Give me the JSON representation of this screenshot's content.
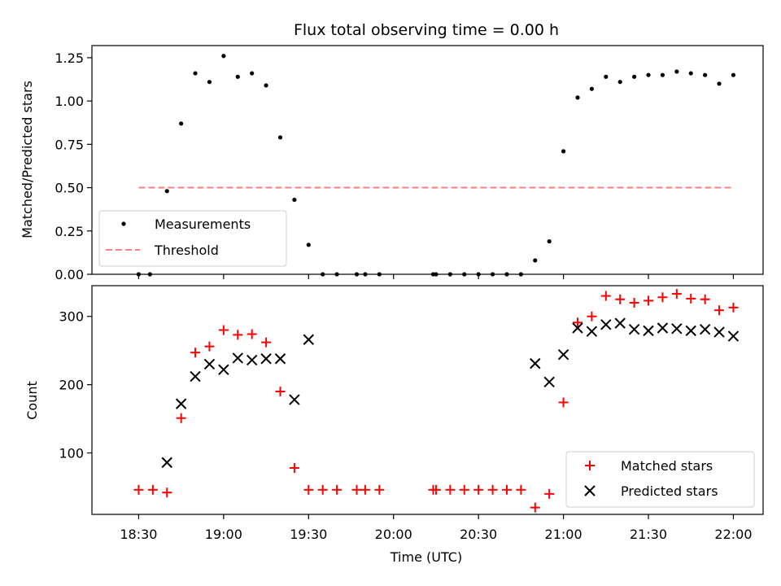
{
  "chart_data": {
    "title": "Flux total observing time = 0.00 h",
    "xlabel": "Time (UTC)",
    "x_ticks": [
      "18:30",
      "19:00",
      "19:30",
      "20:00",
      "20:30",
      "21:00",
      "21:30",
      "22:00"
    ],
    "x_tick_hours": [
      18.5,
      19.0,
      19.5,
      20.0,
      20.5,
      21.0,
      21.5,
      22.0
    ],
    "xlim_hours": [
      18.225,
      22.175
    ],
    "panels": [
      {
        "type": "scatter",
        "ylabel": "Matched/Predicted stars",
        "ylim": [
          0,
          1.32
        ],
        "y_ticks": [
          0.0,
          0.25,
          0.5,
          0.75,
          1.0,
          1.25
        ],
        "y_tick_labels": [
          "0.00",
          "0.25",
          "0.50",
          "0.75",
          "1.00",
          "1.25"
        ],
        "legend_position": "lower-left",
        "series": [
          {
            "name": "Measurements",
            "marker": "dot",
            "color": "#000000",
            "x_times": [
              "18:30",
              "18:34",
              "18:40",
              "18:45",
              "18:50",
              "18:55",
              "19:00",
              "19:05",
              "19:10",
              "19:15",
              "19:20",
              "19:25",
              "19:30",
              "19:35",
              "19:40",
              "19:47",
              "19:50",
              "19:55",
              "20:14",
              "20:15",
              "20:20",
              "20:25",
              "20:30",
              "20:35",
              "20:40",
              "20:45",
              "20:50",
              "20:55",
              "21:00",
              "21:05",
              "21:10",
              "21:15",
              "21:20",
              "21:25",
              "21:30",
              "21:35",
              "21:40",
              "21:45",
              "21:50",
              "21:55",
              "22:00"
            ],
            "y": [
              0.0,
              0.0,
              0.48,
              0.87,
              1.16,
              1.11,
              1.26,
              1.14,
              1.16,
              1.09,
              0.79,
              0.43,
              0.17,
              0.0,
              0.0,
              0.0,
              0.0,
              0.0,
              0.0,
              0.0,
              0.0,
              0.0,
              0.0,
              0.0,
              0.0,
              0.0,
              0.08,
              0.19,
              0.71,
              1.02,
              1.07,
              1.14,
              1.11,
              1.14,
              1.15,
              1.15,
              1.17,
              1.16,
              1.15,
              1.1,
              1.15
            ]
          },
          {
            "name": "Threshold",
            "marker": "dashed-line",
            "color": "#ff7f7f",
            "x_times": [
              "18:30",
              "22:00"
            ],
            "y": [
              0.5,
              0.5
            ]
          }
        ]
      },
      {
        "type": "scatter",
        "ylabel": "Count",
        "ylim": [
          10,
          345
        ],
        "y_ticks": [
          100,
          200,
          300
        ],
        "y_tick_labels": [
          "100",
          "200",
          "300"
        ],
        "legend_position": "lower-right",
        "series": [
          {
            "name": "Matched stars",
            "marker": "plus",
            "color": "#ff0000",
            "x_times": [
              "18:30",
              "18:35",
              "18:40",
              "18:45",
              "18:50",
              "18:55",
              "19:00",
              "19:05",
              "19:10",
              "19:15",
              "19:20",
              "19:25",
              "19:30",
              "19:35",
              "19:40",
              "19:47",
              "19:50",
              "19:55",
              "20:14",
              "20:15",
              "20:20",
              "20:25",
              "20:30",
              "20:35",
              "20:40",
              "20:45",
              "20:50",
              "20:55",
              "21:00",
              "21:05",
              "21:10",
              "21:15",
              "21:20",
              "21:25",
              "21:30",
              "21:35",
              "21:40",
              "21:45",
              "21:50",
              "21:55",
              "22:00"
            ],
            "y": [
              46,
              46,
              42,
              151,
              247,
              256,
              280,
              273,
              274,
              262,
              190,
              78,
              46,
              46,
              46,
              46,
              46,
              46,
              46,
              46,
              46,
              46,
              46,
              46,
              46,
              46,
              20,
              40,
              174,
              291,
              300,
              330,
              325,
              320,
              323,
              328,
              333,
              326,
              325,
              309,
              313
            ]
          },
          {
            "name": "Predicted stars",
            "marker": "x",
            "color": "#000000",
            "x_times": [
              "18:40",
              "18:45",
              "18:50",
              "18:55",
              "19:00",
              "19:05",
              "19:10",
              "19:15",
              "19:20",
              "19:25",
              "19:30",
              "20:50",
              "20:55",
              "21:00",
              "21:05",
              "21:10",
              "21:15",
              "21:20",
              "21:25",
              "21:30",
              "21:35",
              "21:40",
              "21:45",
              "21:50",
              "21:55",
              "22:00"
            ],
            "y": [
              86,
              172,
              212,
              230,
              222,
              239,
              236,
              238,
              238,
              178,
              266,
              231,
              204,
              244,
              283,
              278,
              288,
              290,
              281,
              279,
              283,
              282,
              279,
              281,
              277,
              271
            ]
          }
        ]
      }
    ]
  }
}
